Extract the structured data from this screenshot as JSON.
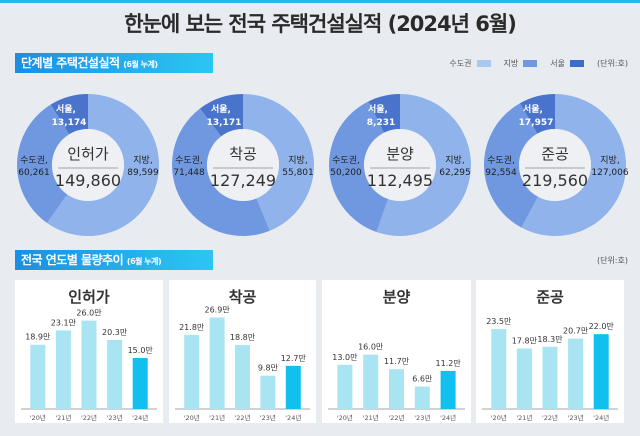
{
  "title": "한눈에 보는 전국 주택건설실적 (2024년 6월)",
  "section1": {
    "title": "단계별 주택건설실적",
    "sub": "(6월 누계)"
  },
  "legend": {
    "items": [
      {
        "label": "수도권",
        "color": "#a9c8f0"
      },
      {
        "label": "지방",
        "color": "#6f98e0"
      },
      {
        "label": "서울",
        "color": "#3d6cc8"
      }
    ],
    "unit": "(단위:호)"
  },
  "section2": {
    "title": "전국 연도별 물량추이",
    "sub": "(6월 누계)",
    "unit": "(단위:호)"
  },
  "colors": {
    "local": "#8fb3ea",
    "capital": "#6f98e0",
    "seoul": "#4a74cc",
    "bar": "#a8e4f2",
    "bar_current": "#12c0ef"
  },
  "chart_data": [
    {
      "type": "pie",
      "title": "인허가",
      "total": "149,860",
      "slices": [
        {
          "name": "지방",
          "value": 89599,
          "label": "89,599"
        },
        {
          "name": "수도권",
          "value": 60261,
          "label": "60,261"
        },
        {
          "name": "서울",
          "value": 13174,
          "label": "13,174"
        }
      ]
    },
    {
      "type": "pie",
      "title": "착공",
      "total": "127,249",
      "slices": [
        {
          "name": "지방",
          "value": 55801,
          "label": "55,801"
        },
        {
          "name": "수도권",
          "value": 71448,
          "label": "71,448"
        },
        {
          "name": "서울",
          "value": 13171,
          "label": "13,171"
        }
      ]
    },
    {
      "type": "pie",
      "title": "분양",
      "total": "112,495",
      "slices": [
        {
          "name": "지방",
          "value": 62295,
          "label": "62,295"
        },
        {
          "name": "수도권",
          "value": 50200,
          "label": "50,200"
        },
        {
          "name": "서울",
          "value": 8231,
          "label": "8,231"
        }
      ]
    },
    {
      "type": "pie",
      "title": "준공",
      "total": "219,560",
      "slices": [
        {
          "name": "지방",
          "value": 127006,
          "label": "127,006"
        },
        {
          "name": "수도권",
          "value": 92554,
          "label": "92,554"
        },
        {
          "name": "서울",
          "value": 17957,
          "label": "17,957"
        }
      ]
    },
    {
      "type": "bar",
      "title": "인허가",
      "categories": [
        "'20년",
        "'21년",
        "'22년",
        "'23년",
        "'24년"
      ],
      "values": [
        18.9,
        23.1,
        26.0,
        20.3,
        15.0
      ],
      "labels": [
        "18.9만",
        "23.1만",
        "26.0만",
        "20.3만",
        "15.0만"
      ],
      "ylim": [
        0,
        30
      ]
    },
    {
      "type": "bar",
      "title": "착공",
      "categories": [
        "'20년",
        "'21년",
        "'22년",
        "'23년",
        "'24년"
      ],
      "values": [
        21.8,
        26.9,
        18.8,
        9.8,
        12.7
      ],
      "labels": [
        "21.8만",
        "26.9만",
        "18.8만",
        "9.8만",
        "12.7만"
      ],
      "ylim": [
        0,
        30
      ]
    },
    {
      "type": "bar",
      "title": "분양",
      "categories": [
        "'20년",
        "'21년",
        "'22년",
        "'23년",
        "'24년"
      ],
      "values": [
        13.0,
        16.0,
        11.7,
        6.6,
        11.2
      ],
      "labels": [
        "13.0만",
        "16.0만",
        "11.7만",
        "6.6만",
        "11.2만"
      ],
      "ylim": [
        0,
        30
      ]
    },
    {
      "type": "bar",
      "title": "준공",
      "categories": [
        "'20년",
        "'21년",
        "'22년",
        "'23년",
        "'24년"
      ],
      "values": [
        23.5,
        17.8,
        18.3,
        20.7,
        22.0
      ],
      "labels": [
        "23.5만",
        "17.8만",
        "18.3만",
        "20.7만",
        "22.0만"
      ],
      "ylim": [
        0,
        30
      ]
    }
  ]
}
